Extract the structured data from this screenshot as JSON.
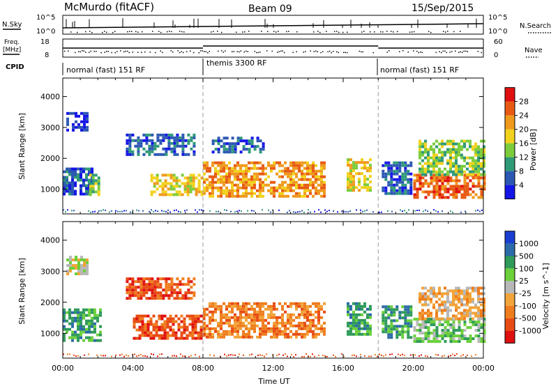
{
  "header": {
    "station": "McMurdo (fitACF)",
    "beam": "Beam 09",
    "date": "15/Sep/2015"
  },
  "top_panels": {
    "nsky_label": "N.Sky",
    "nsky_ticks": [
      "10^5",
      "10^0"
    ],
    "nsearch_label": "N.Search",
    "nsearch_ticks": [
      "10^5",
      "10^0"
    ],
    "freq_label_1": "Freq.",
    "freq_label_2": "[MHz]",
    "freq_ticks": [
      "18",
      "8"
    ],
    "nave_label": "Nave",
    "nave_ticks": [
      "60",
      "0"
    ],
    "cpid_label": "CPID",
    "cpid_segments": [
      {
        "label": "normal (fast) 151 RF",
        "start_hour": 0,
        "end_hour": 8
      },
      {
        "label": "themis 3300 RF",
        "start_hour": 8,
        "end_hour": 18
      },
      {
        "label": "normal (fast) 151 RF",
        "start_hour": 18,
        "end_hour": 24
      }
    ]
  },
  "chart_data": [
    {
      "type": "heatmap",
      "title": "",
      "ylabel": "Slant Range [km]",
      "ylim": [
        200,
        4600
      ],
      "yticks": [
        "1000",
        "2000",
        "3000",
        "4000"
      ],
      "xlim_hours": [
        0,
        24
      ],
      "colorbar_label": "Power [dB]",
      "colorbar_ticks": [
        "4",
        "8",
        "12",
        "16",
        "20",
        "24",
        "28"
      ],
      "colorbar_colors": [
        "#1515e8",
        "#2c58b4",
        "#2f9a78",
        "#7ccc3c",
        "#f2d21c",
        "#ef9a1d",
        "#e85a13",
        "#e01010"
      ],
      "bands": [
        {
          "t0": 0.0,
          "t1": 1.6,
          "r0": 800,
          "r1": 1700,
          "level": 1
        },
        {
          "t0": 0.2,
          "t1": 1.4,
          "r0": 2900,
          "r1": 3500,
          "level": 0
        },
        {
          "t0": 1.5,
          "t1": 2.0,
          "r0": 800,
          "r1": 1500,
          "level": 3
        },
        {
          "t0": 3.6,
          "t1": 7.5,
          "r0": 2100,
          "r1": 2800,
          "level": 1
        },
        {
          "t0": 5.0,
          "t1": 7.9,
          "r0": 800,
          "r1": 1500,
          "level": 4
        },
        {
          "t0": 8.0,
          "t1": 15.0,
          "r0": 800,
          "r1": 1900,
          "level": 5
        },
        {
          "t0": 8.5,
          "t1": 11.5,
          "r0": 2200,
          "r1": 2700,
          "level": 1
        },
        {
          "t0": 16.2,
          "t1": 17.5,
          "r0": 1000,
          "r1": 2000,
          "level": 4
        },
        {
          "t0": 18.2,
          "t1": 19.8,
          "r0": 900,
          "r1": 1900,
          "level": 1
        },
        {
          "t0": 20.0,
          "t1": 24.0,
          "r0": 700,
          "r1": 1500,
          "level": 6
        },
        {
          "t0": 20.3,
          "t1": 24.0,
          "r0": 1500,
          "r1": 2600,
          "level": 3
        }
      ]
    },
    {
      "type": "heatmap",
      "title": "",
      "ylabel": "Slant Range [km]",
      "ylim": [
        200,
        4600
      ],
      "yticks": [
        "1000",
        "2000",
        "3000",
        "4000"
      ],
      "xlim_hours": [
        0,
        24
      ],
      "colorbar_label": "Velocity [m s^-1]",
      "colorbar_ticks": [
        "1000",
        "500",
        "100",
        "25",
        "-25",
        "-100",
        "-500",
        "-1000"
      ],
      "colorbar_colors": [
        "#1a3fd0",
        "#2c6aa8",
        "#2f9a5a",
        "#6bd03a",
        "#b8b8b8",
        "#f2a43a",
        "#ef7d1d",
        "#e84b13",
        "#e01010"
      ],
      "bands": [
        {
          "t0": 0.0,
          "t1": 2.2,
          "r0": 800,
          "r1": 1800,
          "level": 6
        },
        {
          "t0": 0.2,
          "t1": 1.4,
          "r0": 2900,
          "r1": 3500,
          "level": 4
        },
        {
          "t0": 3.6,
          "t1": 7.5,
          "r0": 2100,
          "r1": 2800,
          "level": 1
        },
        {
          "t0": 4.0,
          "t1": 8.0,
          "r0": 800,
          "r1": 1600,
          "level": 1
        },
        {
          "t0": 8.0,
          "t1": 15.0,
          "r0": 900,
          "r1": 2000,
          "level": 2
        },
        {
          "t0": 16.2,
          "t1": 17.5,
          "r0": 1000,
          "r1": 2000,
          "level": 6
        },
        {
          "t0": 18.2,
          "t1": 19.8,
          "r0": 900,
          "r1": 1900,
          "level": 6
        },
        {
          "t0": 20.0,
          "t1": 24.0,
          "r0": 700,
          "r1": 1500,
          "level": 5
        },
        {
          "t0": 20.3,
          "t1": 24.0,
          "r0": 1500,
          "r1": 2500,
          "level": 3
        }
      ]
    }
  ],
  "x_axis": {
    "ticks": [
      "00:00",
      "04:00",
      "08:00",
      "12:00",
      "16:00",
      "20:00",
      "00:00"
    ],
    "label": "Time UT"
  }
}
